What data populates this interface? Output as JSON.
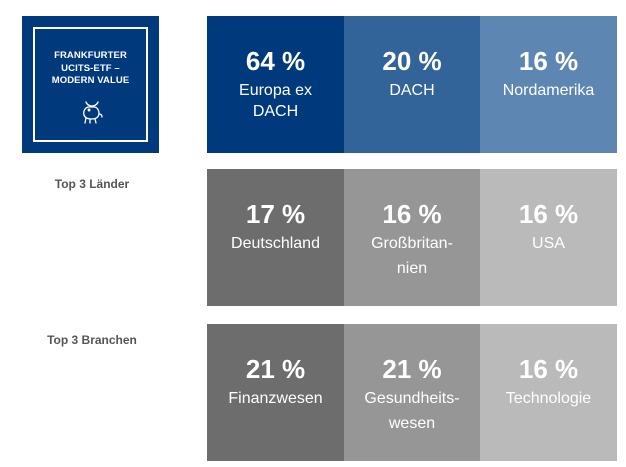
{
  "logo": {
    "lines": [
      "FRANKFURTER",
      "UCITS-ETF –",
      "MODERN VALUE"
    ],
    "icon": "bull-icon"
  },
  "rows": [
    {
      "label": "",
      "cells": [
        {
          "percent": "64 %",
          "label_lines": [
            "Europa ex",
            "DACH"
          ],
          "color": "#003a7d"
        },
        {
          "percent": "20 %",
          "label_lines": [
            "DACH"
          ],
          "color": "#326499"
        },
        {
          "percent": "16 %",
          "label_lines": [
            "Nordamerika"
          ],
          "color": "#5e86b3"
        }
      ]
    },
    {
      "label": "Top 3 Länder",
      "cells": [
        {
          "percent": "17 %",
          "label_lines": [
            "Deutschland"
          ],
          "color": "#6d6d6d"
        },
        {
          "percent": "16 %",
          "label_lines": [
            "Großbritan-",
            "nien"
          ],
          "color": "#969696"
        },
        {
          "percent": "16 %",
          "label_lines": [
            "USA"
          ],
          "color": "#bababa"
        }
      ]
    },
    {
      "label": "Top 3 Branchen",
      "cells": [
        {
          "percent": "21 %",
          "label_lines": [
            "Finanzwesen"
          ],
          "color": "#6d6d6d"
        },
        {
          "percent": "21 %",
          "label_lines": [
            "Gesundheits-",
            "wesen"
          ],
          "color": "#969696"
        },
        {
          "percent": "16 %",
          "label_lines": [
            "Technologie"
          ],
          "color": "#bababa"
        }
      ]
    }
  ]
}
